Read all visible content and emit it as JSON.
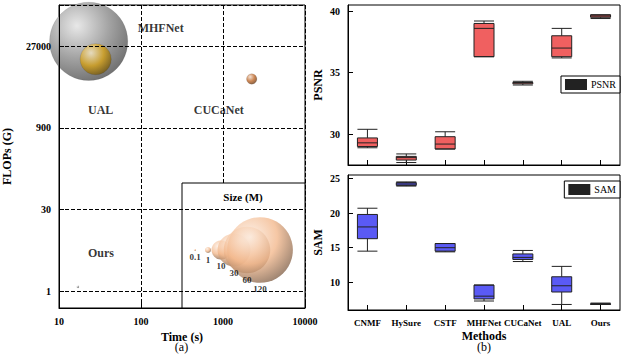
{
  "chart_data": [
    {
      "type": "scatter",
      "caption": "(a)",
      "x_label": "Time (s)",
      "y_label": "FLOPs (G)",
      "log": true,
      "grid": true,
      "xlim": [
        10,
        10000
      ],
      "xticks": [
        10,
        100,
        1000,
        10000
      ],
      "ylim": [
        0.5,
        150000
      ],
      "yticks": [
        1,
        30,
        900,
        27000
      ],
      "labels": [
        "MHFNet",
        "UAL",
        "CUCaNet",
        "Ours"
      ],
      "x": [
        23,
        28,
        2240,
        17
      ],
      "values": [
        33000,
        15700,
        6900,
        1.2
      ],
      "sizes": [
        170,
        27,
        3,
        0.1
      ],
      "colors": [
        "#8c8c8c",
        "#d4a017",
        "#c0692a",
        "#9a9a9a"
      ],
      "size_legend": {
        "title": "Size (M)",
        "sizes": [
          0.1,
          1,
          10,
          30,
          60,
          120
        ],
        "color": "#f3b98e"
      }
    },
    {
      "type": "boxplot",
      "y_label": "PSNR",
      "grid": false,
      "legend": "right",
      "tick_labels": "y",
      "categories": [
        "CNMF",
        "HySure",
        "CSTF",
        "MHFNet",
        "CUCaNet",
        "UAL",
        "Ours"
      ],
      "ylim": [
        27.5,
        40.5
      ],
      "yticks": [
        30,
        35,
        40
      ],
      "series": [
        {
          "name": "PSNR",
          "color": "#f06060",
          "values": [
            [
              28.9,
              29.0,
              29.3,
              29.7,
              30.4
            ],
            [
              27.7,
              27.9,
              28.1,
              28.2,
              28.4
            ],
            [
              28.8,
              28.8,
              29.2,
              29.8,
              30.2
            ],
            [
              36.3,
              36.3,
              38.6,
              39.0,
              39.2
            ],
            [
              34.0,
              34.1,
              34.2,
              34.2,
              34.3
            ],
            [
              36.2,
              36.3,
              37.0,
              38.0,
              38.6
            ],
            [
              39.4,
              39.5,
              39.6,
              39.7,
              39.7
            ]
          ]
        }
      ]
    },
    {
      "type": "boxplot",
      "caption": "(b)",
      "x_label": "Methods",
      "y_label": "SAM",
      "grid": false,
      "legend": "upper right",
      "categories": [
        "CNMF",
        "HySure",
        "CSTF",
        "MHFNet",
        "CUCaNet",
        "UAL",
        "Ours"
      ],
      "ylim": [
        6,
        25.5
      ],
      "yticks": [
        10,
        15,
        20,
        25
      ],
      "series": [
        {
          "name": "SAM",
          "color": "#5a5af5",
          "values": [
            [
              14.5,
              16.3,
              18.0,
              19.8,
              20.7
            ],
            [
              23.9,
              24.0,
              24.2,
              24.4,
              24.5
            ],
            [
              14.4,
              14.5,
              15.0,
              15.6,
              15.6
            ],
            [
              7.3,
              7.6,
              8.0,
              9.6,
              9.6
            ],
            [
              13.0,
              13.3,
              13.6,
              14.1,
              14.6
            ],
            [
              6.8,
              8.6,
              9.5,
              10.8,
              12.3
            ],
            [
              6.8,
              6.8,
              6.9,
              6.9,
              7.0
            ]
          ]
        }
      ]
    }
  ]
}
